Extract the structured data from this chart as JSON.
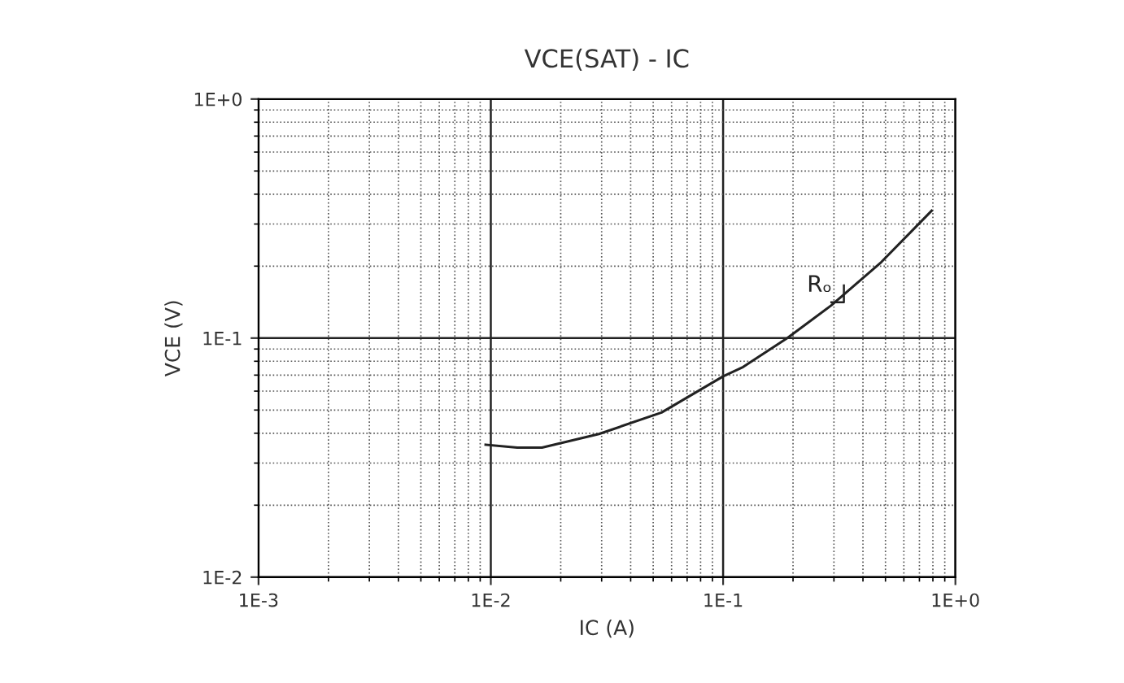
{
  "chart_data": {
    "type": "line",
    "title": "VCE(SAT) - IC",
    "xlabel": "IC (A)",
    "ylabel": "VCE (V)",
    "log": "xy",
    "grid": true,
    "marker": "none",
    "line_style": "solid",
    "xlim": [
      0.001,
      1
    ],
    "ylim": [
      0.01,
      1
    ],
    "xticks": [
      {
        "value": 0.001,
        "label": "1E-3"
      },
      {
        "value": 0.01,
        "label": "1E-2"
      },
      {
        "value": 0.1,
        "label": "1E-1"
      },
      {
        "value": 1,
        "label": "1E+0"
      }
    ],
    "yticks": [
      {
        "value": 0.01,
        "label": "1E-2"
      },
      {
        "value": 0.1,
        "label": "1E-1"
      },
      {
        "value": 1,
        "label": "1E+0"
      }
    ],
    "x": [
      0.0095,
      0.013,
      0.0166,
      0.0292,
      0.0543,
      0.1,
      0.122,
      0.189,
      0.292,
      0.48,
      0.79
    ],
    "series": [
      {
        "color": "#222222",
        "values": [
          0.0358,
          0.0348,
          0.0348,
          0.0397,
          0.0488,
          0.0692,
          0.0757,
          0.1,
          0.137,
          0.208,
          0.341
        ]
      }
    ],
    "annotations": [
      "Rₒ"
    ]
  }
}
